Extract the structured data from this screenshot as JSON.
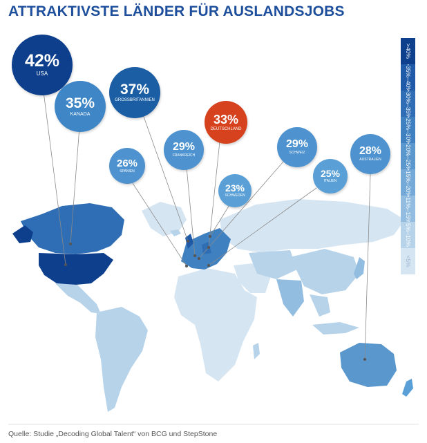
{
  "title": "ATTRAKTIVSTE LÄNDER FÜR AUSLANDSJOBS",
  "source": "Quelle: Studie „Decoding Global Talent“ von BCG und StepStone",
  "legend": [
    {
      "label": ">40%",
      "color": "#0d3f8c"
    },
    {
      "label": ">35%–40%",
      "color": "#1e5aa7"
    },
    {
      "label": ">30%–35%",
      "color": "#2f6eb5"
    },
    {
      "label": ">25%–30%",
      "color": "#3f80c1"
    },
    {
      "label": ">20%–25%",
      "color": "#5a97cd"
    },
    {
      "label": ">15%–20%",
      "color": "#75aad8"
    },
    {
      "label": ">11%–15%",
      "color": "#92bde1"
    },
    {
      "label": "5%–10%",
      "color": "#b6d3ea"
    },
    {
      "label": "<5%",
      "color": "#d6e5f2"
    }
  ],
  "countries": [
    {
      "key": "usa",
      "pct": "42%",
      "name": "USA",
      "color": "#0d3f8c"
    },
    {
      "key": "kanada",
      "pct": "35%",
      "name": "KANADA",
      "color": "#3f86c6"
    },
    {
      "key": "gb",
      "pct": "37%",
      "name": "GROSSBRITANNIEN",
      "color": "#1b5ea4"
    },
    {
      "key": "de",
      "pct": "33%",
      "name": "DEUTSCHLAND",
      "color": "#d6421d"
    },
    {
      "key": "es",
      "pct": "26%",
      "name": "SPANIEN",
      "color": "#4e93cf"
    },
    {
      "key": "fr",
      "pct": "29%",
      "name": "FRANKREICH",
      "color": "#4e93cf"
    },
    {
      "key": "se",
      "pct": "23%",
      "name": "SCHWEDEN",
      "color": "#5aa0d6"
    },
    {
      "key": "ch",
      "pct": "29%",
      "name": "SCHWEIZ",
      "color": "#4e93cf"
    },
    {
      "key": "it",
      "pct": "25%",
      "name": "ITALIEN",
      "color": "#5aa0d6"
    },
    {
      "key": "au",
      "pct": "28%",
      "name": "AUSTRALIEN",
      "color": "#4e93cf"
    }
  ]
}
